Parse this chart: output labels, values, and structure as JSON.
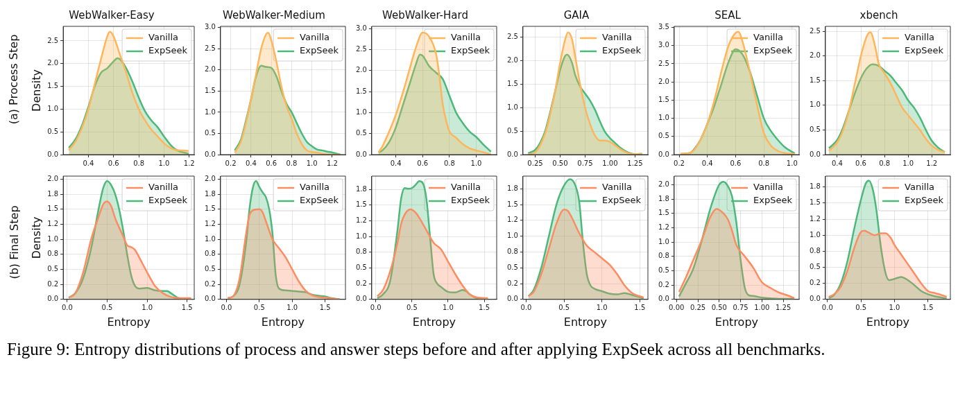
{
  "chart_data": [
    {
      "type": "area",
      "title": "WebWalker-Easy",
      "ylabel": "Density",
      "annotations": [
        "(a) Process Step"
      ],
      "xlim": [
        0.2,
        1.24
      ],
      "xticks": [
        0.4,
        0.6,
        0.8,
        {
          "value": 1.0,
          "label": "1.0"
        },
        1.2
      ],
      "ylim": [
        0,
        2.82
      ],
      "yticks": [
        {
          "value": 0,
          "label": "0.0"
        },
        0.5,
        {
          "value": 1.0,
          "label": "1.0"
        },
        1.5,
        {
          "value": 2.0,
          "label": "2.0"
        },
        2.5
      ],
      "grid": true,
      "legend": "top right",
      "line_style": "solid",
      "series": [
        {
          "name": "Vanilla",
          "color": "#fdb65b",
          "x": [
            0.245,
            0.3,
            0.35,
            0.4,
            0.45,
            0.5,
            0.55,
            0.57,
            0.6,
            0.65,
            0.7,
            0.75,
            0.8,
            0.85,
            0.9,
            0.95,
            1.0,
            1.05,
            1.1,
            1.15,
            1.195
          ],
          "values": [
            0.1,
            0.3,
            0.6,
            1.0,
            1.55,
            2.1,
            2.6,
            2.7,
            2.6,
            2.2,
            1.8,
            1.35,
            1.0,
            0.75,
            0.55,
            0.4,
            0.25,
            0.15,
            0.1,
            0.09,
            0.08
          ]
        },
        {
          "name": "ExpSeek",
          "color": "#4cb87a",
          "x": [
            0.245,
            0.3,
            0.35,
            0.4,
            0.45,
            0.5,
            0.55,
            0.6,
            0.63,
            0.65,
            0.7,
            0.75,
            0.8,
            0.85,
            0.9,
            0.95,
            1.0,
            1.05,
            1.1,
            1.195
          ],
          "values": [
            0.15,
            0.35,
            0.65,
            1.05,
            1.5,
            1.8,
            1.9,
            2.05,
            2.12,
            2.1,
            1.9,
            1.6,
            1.25,
            0.95,
            0.75,
            0.6,
            0.4,
            0.22,
            0.1,
            0.02
          ]
        }
      ]
    },
    {
      "type": "area",
      "title": "WebWalker-Medium",
      "xlim": [
        0.1,
        1.33
      ],
      "xticks": [
        0.2,
        0.4,
        0.6,
        0.8,
        {
          "value": 1.0,
          "label": "1.0"
        },
        1.2
      ],
      "ylim": [
        0,
        3.03
      ],
      "yticks": [
        {
          "value": 0,
          "label": "0.0"
        },
        0.5,
        {
          "value": 1.0,
          "label": "1.0"
        },
        1.5,
        {
          "value": 2.0,
          "label": "2.0"
        },
        2.5,
        {
          "value": 3.0,
          "label": "3.0"
        }
      ],
      "grid": true,
      "legend": "top right",
      "line_style": "solid",
      "series": [
        {
          "name": "Vanilla",
          "color": "#fdb65b",
          "x": [
            0.24,
            0.3,
            0.35,
            0.4,
            0.45,
            0.5,
            0.55,
            0.57,
            0.6,
            0.65,
            0.7,
            0.75,
            0.8,
            0.85,
            0.9,
            0.95,
            1.0,
            1.05,
            1.1,
            1.2,
            1.28
          ],
          "values": [
            0.05,
            0.3,
            0.75,
            1.3,
            1.9,
            2.5,
            2.85,
            2.88,
            2.7,
            2.2,
            1.6,
            1.15,
            0.85,
            0.5,
            0.25,
            0.1,
            0.06,
            0.05,
            0.02,
            0.0,
            0.0
          ]
        },
        {
          "name": "ExpSeek",
          "color": "#4cb87a",
          "x": [
            0.24,
            0.3,
            0.35,
            0.4,
            0.45,
            0.5,
            0.55,
            0.6,
            0.65,
            0.7,
            0.75,
            0.8,
            0.85,
            0.9,
            0.95,
            1.0,
            1.05,
            1.1,
            1.15,
            1.2,
            1.28
          ],
          "values": [
            0.1,
            0.35,
            0.8,
            1.3,
            1.85,
            2.1,
            2.07,
            2.05,
            1.85,
            1.5,
            1.2,
            1.0,
            0.75,
            0.5,
            0.3,
            0.2,
            0.12,
            0.1,
            0.07,
            0.05,
            0.0
          ]
        }
      ]
    },
    {
      "type": "area",
      "title": "WebWalker-Hard",
      "xlim": [
        0.22,
        1.153
      ],
      "xticks": [
        0.4,
        0.6,
        0.8,
        {
          "value": 1.0,
          "label": "1.0"
        }
      ],
      "ylim": [
        0,
        3.05
      ],
      "yticks": [
        {
          "value": 0,
          "label": "0.0"
        },
        0.5,
        {
          "value": 1.0,
          "label": "1.0"
        },
        1.5,
        {
          "value": 2.0,
          "label": "2.0"
        },
        2.5,
        {
          "value": 3.0,
          "label": "3.0"
        }
      ],
      "grid": true,
      "legend": "top right",
      "line_style": "solid",
      "series": [
        {
          "name": "Vanilla",
          "color": "#fdb65b",
          "x": [
            0.27,
            0.3,
            0.35,
            0.4,
            0.45,
            0.5,
            0.55,
            0.6,
            0.65,
            0.7,
            0.72,
            0.75,
            0.78,
            0.8,
            0.85,
            0.9,
            0.95,
            1.0,
            1.05,
            1.11
          ],
          "values": [
            0.05,
            0.2,
            0.55,
            0.95,
            1.45,
            2.0,
            2.55,
            2.9,
            2.8,
            2.4,
            2.0,
            1.2,
            0.75,
            0.55,
            0.4,
            0.25,
            0.15,
            0.1,
            0.06,
            0.0
          ]
        },
        {
          "name": "ExpSeek",
          "color": "#4cb87a",
          "x": [
            0.27,
            0.3,
            0.35,
            0.4,
            0.45,
            0.5,
            0.55,
            0.58,
            0.6,
            0.65,
            0.7,
            0.75,
            0.8,
            0.85,
            0.9,
            0.95,
            1.0,
            1.05,
            1.11
          ],
          "values": [
            0.05,
            0.1,
            0.3,
            0.65,
            1.15,
            1.65,
            2.15,
            2.38,
            2.35,
            2.1,
            1.95,
            1.8,
            1.4,
            1.0,
            0.75,
            0.55,
            0.42,
            0.25,
            0.07
          ]
        }
      ]
    },
    {
      "type": "area",
      "title": "GAIA",
      "xlim": [
        0.128,
        1.379
      ],
      "xticks": [
        0.25,
        {
          "value": 0.5,
          "label": "0.50"
        },
        0.75,
        {
          "value": 1.0,
          "label": "1.00"
        },
        1.25
      ],
      "ylim": [
        0,
        2.73
      ],
      "yticks": [
        {
          "value": 0,
          "label": "0.0"
        },
        0.5,
        {
          "value": 1.0,
          "label": "1.0"
        },
        1.5,
        {
          "value": 2.0,
          "label": "2.0"
        },
        2.5
      ],
      "grid": true,
      "legend": "top right",
      "line_style": "solid",
      "series": [
        {
          "name": "Vanilla",
          "color": "#fdb65b",
          "x": [
            0.18,
            0.25,
            0.3,
            0.35,
            0.4,
            0.45,
            0.5,
            0.55,
            0.58,
            0.62,
            0.65,
            0.7,
            0.75,
            0.8,
            0.85,
            0.9,
            0.95,
            1.0,
            1.05,
            1.1,
            1.15,
            1.2,
            1.25,
            1.32
          ],
          "values": [
            0.0,
            0.05,
            0.2,
            0.45,
            0.85,
            1.35,
            1.95,
            2.45,
            2.6,
            2.45,
            2.1,
            1.5,
            1.0,
            0.65,
            0.4,
            0.3,
            0.3,
            0.27,
            0.2,
            0.12,
            0.06,
            0.02,
            0.01,
            0.02
          ]
        },
        {
          "name": "ExpSeek",
          "color": "#4cb87a",
          "x": [
            0.18,
            0.25,
            0.3,
            0.35,
            0.4,
            0.45,
            0.5,
            0.55,
            0.57,
            0.62,
            0.65,
            0.7,
            0.75,
            0.8,
            0.85,
            0.9,
            0.95,
            1.0,
            1.05,
            1.1,
            1.15,
            1.2,
            1.25,
            1.32
          ],
          "values": [
            0.03,
            0.1,
            0.25,
            0.5,
            0.9,
            1.35,
            1.8,
            2.1,
            2.13,
            1.95,
            1.7,
            1.45,
            1.3,
            1.15,
            0.95,
            0.7,
            0.48,
            0.35,
            0.25,
            0.15,
            0.08,
            0.03,
            0.01,
            0.02
          ]
        }
      ]
    },
    {
      "type": "area",
      "title": "SEAL",
      "xlim": [
        0.165,
        1.05
      ],
      "xticks": [
        0.2,
        0.4,
        0.6,
        0.8,
        {
          "value": 1.0,
          "label": "1.0"
        }
      ],
      "ylim": [
        0,
        3.53
      ],
      "yticks": [
        {
          "value": 0,
          "label": "0.0"
        },
        0.5,
        {
          "value": 1.0,
          "label": "1.0"
        },
        1.5,
        {
          "value": 2.0,
          "label": "2.0"
        },
        2.5,
        {
          "value": 3.0,
          "label": "3.0"
        },
        3.5
      ],
      "grid": true,
      "legend": "top right",
      "line_style": "solid",
      "series": [
        {
          "name": "Vanilla",
          "color": "#fdb65b",
          "x": [
            0.21,
            0.25,
            0.3,
            0.35,
            0.4,
            0.45,
            0.5,
            0.55,
            0.6,
            0.62,
            0.65,
            0.7,
            0.75,
            0.8,
            0.85,
            0.9,
            0.95,
            1.02
          ],
          "values": [
            0.02,
            0.03,
            0.1,
            0.4,
            0.85,
            1.5,
            2.3,
            3.0,
            3.35,
            3.38,
            3.1,
            2.3,
            1.4,
            0.6,
            0.25,
            0.1,
            0.04,
            0.02
          ]
        },
        {
          "name": "ExpSeek",
          "color": "#4cb87a",
          "x": [
            0.21,
            0.25,
            0.28,
            0.3,
            0.35,
            0.4,
            0.45,
            0.5,
            0.55,
            0.6,
            0.65,
            0.7,
            0.75,
            0.8,
            0.85,
            0.9,
            0.95,
            1.02
          ],
          "values": [
            0.02,
            0.03,
            0.05,
            0.12,
            0.4,
            0.85,
            1.35,
            1.95,
            2.55,
            2.9,
            2.75,
            2.3,
            1.65,
            1.0,
            0.65,
            0.4,
            0.2,
            0.03
          ]
        }
      ]
    },
    {
      "type": "area",
      "title": "xbench",
      "xlim": [
        0.3,
        1.357
      ],
      "xticks": [
        0.4,
        0.6,
        0.8,
        {
          "value": 1.0,
          "label": "1.0"
        },
        1.2
      ],
      "ylim": [
        0,
        2.6
      ],
      "yticks": [
        {
          "value": 0,
          "label": "0.0"
        },
        0.5,
        {
          "value": 1.0,
          "label": "1.0"
        },
        1.5,
        {
          "value": 2.0,
          "label": "2.0"
        },
        2.5
      ],
      "grid": true,
      "legend": "top right",
      "line_style": "solid",
      "series": [
        {
          "name": "Vanilla",
          "color": "#fdb65b",
          "x": [
            0.33,
            0.4,
            0.45,
            0.5,
            0.55,
            0.6,
            0.65,
            0.68,
            0.72,
            0.75,
            0.8,
            0.85,
            0.9,
            0.95,
            1.0,
            1.05,
            1.1,
            1.15,
            1.2,
            1.25,
            1.31
          ],
          "values": [
            0.08,
            0.25,
            0.5,
            0.9,
            1.45,
            2.0,
            2.4,
            2.48,
            2.2,
            1.85,
            1.65,
            1.45,
            1.2,
            0.95,
            0.8,
            0.65,
            0.5,
            0.32,
            0.18,
            0.1,
            0.05
          ]
        },
        {
          "name": "ExpSeek",
          "color": "#4cb87a",
          "x": [
            0.33,
            0.4,
            0.45,
            0.5,
            0.55,
            0.6,
            0.65,
            0.7,
            0.75,
            0.8,
            0.85,
            0.9,
            0.95,
            1.0,
            1.05,
            1.1,
            1.15,
            1.2,
            1.25,
            1.31
          ],
          "values": [
            0.13,
            0.3,
            0.55,
            0.9,
            1.25,
            1.55,
            1.75,
            1.83,
            1.8,
            1.7,
            1.6,
            1.45,
            1.3,
            1.1,
            0.95,
            0.75,
            0.5,
            0.28,
            0.15,
            0.05
          ]
        }
      ]
    },
    {
      "type": "area",
      "xlabel": "Entropy",
      "ylabel": "Density",
      "annotations": [
        "(b) Final Step",
        "Figure 9: Entropy distributions of process and answer steps before and after applying ExpSeek across all benchmarks."
      ],
      "xlim": [
        -0.05,
        1.589
      ],
      "xticks": [
        {
          "value": 0,
          "label": "0.0"
        },
        0.5,
        {
          "value": 1.0,
          "label": "1.0"
        },
        1.5
      ],
      "ylim": [
        0,
        2.05
      ],
      "yticks": [
        {
          "value": 0,
          "label": "0.0"
        },
        {
          "value": 0.25,
          "label": "0.2"
        },
        0.5,
        {
          "value": 0.75,
          "label": "0.8"
        },
        {
          "value": 1.0,
          "label": "1.0"
        },
        {
          "value": 1.25,
          "label": "1.2"
        },
        1.5,
        {
          "value": 1.75,
          "label": "1.8"
        },
        {
          "value": 2.0,
          "label": "2.0"
        }
      ],
      "grid": true,
      "legend": "top right",
      "line_style": "solid",
      "series": [
        {
          "name": "Vanilla",
          "color": "#fc8d62",
          "x": [
            0.02,
            0.1,
            0.2,
            0.3,
            0.4,
            0.45,
            0.5,
            0.55,
            0.6,
            0.7,
            0.75,
            0.8,
            0.85,
            0.9,
            1.0,
            1.1,
            1.2,
            1.3,
            1.4,
            1.55
          ],
          "values": [
            0.03,
            0.1,
            0.45,
            1.0,
            1.4,
            1.58,
            1.63,
            1.55,
            1.35,
            1.05,
            0.9,
            0.87,
            0.82,
            0.7,
            0.45,
            0.22,
            0.1,
            0.04,
            0.02,
            0.02
          ]
        },
        {
          "name": "ExpSeek",
          "color": "#4cb87a",
          "x": [
            0.02,
            0.1,
            0.2,
            0.3,
            0.4,
            0.45,
            0.5,
            0.55,
            0.6,
            0.65,
            0.7,
            0.75,
            0.8,
            0.85,
            0.9,
            1.0,
            1.1,
            1.2,
            1.25,
            1.3,
            1.4,
            1.55
          ],
          "values": [
            0.03,
            0.1,
            0.35,
            0.85,
            1.55,
            1.85,
            1.97,
            1.9,
            1.75,
            1.5,
            1.15,
            0.75,
            0.4,
            0.22,
            0.18,
            0.19,
            0.15,
            0.14,
            0.14,
            0.1,
            0.02,
            0.01
          ]
        }
      ]
    },
    {
      "type": "area",
      "xlabel": "Entropy",
      "xlim": [
        -0.09,
        1.81
      ],
      "xticks": [
        {
          "value": 0,
          "label": "0.0"
        },
        0.5,
        {
          "value": 1.0,
          "label": "1.0"
        },
        1.5
      ],
      "ylim": [
        0,
        2.05
      ],
      "yticks": [
        {
          "value": 0,
          "label": "0.0"
        },
        {
          "value": 0.25,
          "label": "0.2"
        },
        0.5,
        {
          "value": 0.75,
          "label": "0.8"
        },
        {
          "value": 1.0,
          "label": "1.0"
        },
        {
          "value": 1.25,
          "label": "1.2"
        },
        1.5,
        {
          "value": 1.75,
          "label": "1.8"
        },
        {
          "value": 2.0,
          "label": "2.0"
        }
      ],
      "grid": true,
      "legend": "top right",
      "line_style": "solid",
      "series": [
        {
          "name": "Vanilla",
          "color": "#fc8d62",
          "x": [
            0.02,
            0.1,
            0.2,
            0.3,
            0.35,
            0.4,
            0.5,
            0.55,
            0.6,
            0.7,
            0.8,
            0.9,
            1.0,
            1.1,
            1.2,
            1.3,
            1.4,
            1.5,
            1.72
          ],
          "values": [
            0.02,
            0.05,
            0.35,
            1.1,
            1.4,
            1.48,
            1.5,
            1.45,
            1.3,
            1.0,
            0.85,
            0.7,
            0.5,
            0.3,
            0.15,
            0.07,
            0.04,
            0.03,
            0.0
          ]
        },
        {
          "name": "ExpSeek",
          "color": "#4cb87a",
          "x": [
            0.02,
            0.1,
            0.2,
            0.3,
            0.35,
            0.4,
            0.45,
            0.5,
            0.55,
            0.6,
            0.65,
            0.7,
            0.75,
            0.8,
            0.9,
            1.0,
            1.1,
            1.2,
            1.3,
            1.4,
            1.5,
            1.6,
            1.72
          ],
          "values": [
            0.02,
            0.05,
            0.25,
            0.95,
            1.5,
            1.85,
            1.97,
            1.87,
            1.78,
            1.7,
            1.5,
            1.1,
            0.4,
            0.18,
            0.15,
            0.14,
            0.13,
            0.12,
            0.08,
            0.06,
            0.05,
            0.02,
            0.0
          ]
        }
      ]
    },
    {
      "type": "area",
      "xlabel": "Entropy",
      "xlim": [
        -0.056,
        1.672
      ],
      "xticks": [
        {
          "value": 0,
          "label": "0.0"
        },
        0.5,
        {
          "value": 1.0,
          "label": "1.0"
        },
        1.5
      ],
      "ylim": [
        0,
        1.96
      ],
      "yticks": [
        {
          "value": 0,
          "label": "0.0"
        },
        {
          "value": 0.25,
          "label": "0.2"
        },
        0.5,
        {
          "value": 0.75,
          "label": "0.8"
        },
        {
          "value": 1.0,
          "label": "1.0"
        },
        {
          "value": 1.25,
          "label": "1.2"
        },
        1.5,
        {
          "value": 1.75,
          "label": "1.8"
        }
      ],
      "grid": true,
      "legend": "top right",
      "line_style": "solid",
      "series": [
        {
          "name": "Vanilla",
          "color": "#fc8d62",
          "x": [
            0.02,
            0.1,
            0.2,
            0.3,
            0.35,
            0.4,
            0.48,
            0.55,
            0.6,
            0.7,
            0.8,
            0.9,
            1.0,
            1.1,
            1.2,
            1.3,
            1.4,
            1.55
          ],
          "values": [
            0.05,
            0.15,
            0.45,
            0.9,
            1.2,
            1.35,
            1.43,
            1.38,
            1.3,
            1.1,
            0.9,
            0.8,
            0.6,
            0.4,
            0.22,
            0.08,
            0.03,
            0.02
          ]
        },
        {
          "name": "ExpSeek",
          "color": "#4cb87a",
          "x": [
            0.02,
            0.1,
            0.2,
            0.3,
            0.35,
            0.4,
            0.45,
            0.5,
            0.55,
            0.6,
            0.65,
            0.7,
            0.75,
            0.8,
            0.85,
            0.9,
            1.0,
            1.1,
            1.2,
            1.25,
            1.3,
            1.4,
            1.55
          ],
          "values": [
            0.02,
            0.08,
            0.3,
            1.1,
            1.6,
            1.77,
            1.76,
            1.77,
            1.82,
            1.88,
            1.85,
            1.6,
            1.0,
            0.4,
            0.25,
            0.2,
            0.12,
            0.11,
            0.15,
            0.13,
            0.08,
            0.02,
            0.01
          ]
        }
      ]
    },
    {
      "type": "area",
      "xlabel": "Entropy",
      "xlim": [
        -0.042,
        1.607
      ],
      "xticks": [
        {
          "value": 0,
          "label": "0.0"
        },
        0.5,
        {
          "value": 1.0,
          "label": "1.0"
        },
        1.5
      ],
      "ylim": [
        0,
        1.95
      ],
      "yticks": [
        {
          "value": 0,
          "label": "0.0"
        },
        {
          "value": 0.25,
          "label": "0.2"
        },
        0.5,
        {
          "value": 0.75,
          "label": "0.8"
        },
        {
          "value": 1.0,
          "label": "1.0"
        },
        {
          "value": 1.25,
          "label": "1.2"
        },
        1.5,
        {
          "value": 1.75,
          "label": "1.8"
        }
      ],
      "grid": true,
      "legend": "top right",
      "line_style": "solid",
      "series": [
        {
          "name": "Vanilla",
          "color": "#fc8d62",
          "x": [
            0.03,
            0.1,
            0.2,
            0.3,
            0.4,
            0.5,
            0.55,
            0.6,
            0.7,
            0.8,
            0.9,
            1.0,
            1.1,
            1.2,
            1.3,
            1.4,
            1.55
          ],
          "values": [
            0.05,
            0.12,
            0.4,
            0.8,
            1.2,
            1.42,
            1.4,
            1.3,
            1.05,
            0.85,
            0.75,
            0.65,
            0.55,
            0.4,
            0.22,
            0.1,
            0.03
          ]
        },
        {
          "name": "ExpSeek",
          "color": "#4cb87a",
          "x": [
            0.03,
            0.1,
            0.2,
            0.3,
            0.4,
            0.5,
            0.58,
            0.65,
            0.7,
            0.75,
            0.8,
            0.85,
            0.9,
            1.0,
            1.1,
            1.2,
            1.3,
            1.4,
            1.55
          ],
          "values": [
            0.05,
            0.15,
            0.5,
            1.0,
            1.5,
            1.8,
            1.9,
            1.8,
            1.55,
            0.9,
            0.4,
            0.22,
            0.17,
            0.13,
            0.09,
            0.08,
            0.1,
            0.07,
            0.02
          ]
        }
      ]
    },
    {
      "type": "area",
      "xlabel": "Entropy",
      "xlim": [
        -0.027,
        1.436
      ],
      "xticks": [
        {
          "value": 0,
          "label": "0.00"
        },
        0.25,
        {
          "value": 0.5,
          "label": "0.50"
        },
        0.75,
        {
          "value": 1.0,
          "label": "1.00"
        },
        1.25
      ],
      "ylim": [
        0,
        2.15
      ],
      "yticks": [
        {
          "value": 0,
          "label": "0.0"
        },
        {
          "value": 0.25,
          "label": "0.2"
        },
        0.5,
        {
          "value": 0.75,
          "label": "0.8"
        },
        {
          "value": 1.0,
          "label": "1.0"
        },
        {
          "value": 1.25,
          "label": "1.2"
        },
        1.5,
        {
          "value": 1.75,
          "label": "1.8"
        },
        {
          "value": 2.0,
          "label": "2.0"
        }
      ],
      "grid": true,
      "legend": "top right",
      "line_style": "solid",
      "series": [
        {
          "name": "Vanilla",
          "color": "#fc8d62",
          "x": [
            0.03,
            0.1,
            0.2,
            0.3,
            0.4,
            0.47,
            0.55,
            0.6,
            0.65,
            0.7,
            0.8,
            0.9,
            1.0,
            1.1,
            1.2,
            1.3,
            1.38
          ],
          "values": [
            0.13,
            0.35,
            0.7,
            1.05,
            1.45,
            1.58,
            1.5,
            1.4,
            1.2,
            0.95,
            0.75,
            0.55,
            0.3,
            0.2,
            0.12,
            0.07,
            0.02
          ]
        },
        {
          "name": "ExpSeek",
          "color": "#4cb87a",
          "x": [
            0.03,
            0.1,
            0.2,
            0.3,
            0.4,
            0.5,
            0.55,
            0.6,
            0.65,
            0.7,
            0.75,
            0.8,
            0.85,
            0.9,
            1.0,
            1.1,
            1.2,
            1.38
          ],
          "values": [
            0.05,
            0.25,
            0.55,
            1.05,
            1.6,
            2.0,
            2.05,
            1.98,
            1.8,
            1.35,
            0.7,
            0.2,
            0.07,
            0.06,
            0.03,
            0.02,
            0.01,
            0.01
          ]
        }
      ]
    },
    {
      "type": "area",
      "xlabel": "Entropy",
      "xlim": [
        -0.03,
        1.835
      ],
      "xticks": [
        {
          "value": 0,
          "label": "0.0"
        },
        0.5,
        {
          "value": 1.0,
          "label": "1.0"
        },
        1.5
      ],
      "ylim": [
        0,
        1.92
      ],
      "yticks": [
        {
          "value": 0,
          "label": "0.0"
        },
        {
          "value": 0.25,
          "label": "0.2"
        },
        0.5,
        {
          "value": 0.75,
          "label": "0.8"
        },
        {
          "value": 1.0,
          "label": "1.0"
        },
        {
          "value": 1.25,
          "label": "1.2"
        },
        1.5,
        {
          "value": 1.75,
          "label": "1.8"
        }
      ],
      "grid": true,
      "legend": "top right",
      "line_style": "solid",
      "series": [
        {
          "name": "Vanilla",
          "color": "#fc8d62",
          "x": [
            0.02,
            0.1,
            0.2,
            0.3,
            0.4,
            0.5,
            0.55,
            0.6,
            0.7,
            0.8,
            0.87,
            0.95,
            1.0,
            1.1,
            1.2,
            1.3,
            1.4,
            1.5,
            1.6,
            1.7,
            1.78
          ],
          "values": [
            0.04,
            0.08,
            0.2,
            0.45,
            0.8,
            1.05,
            1.07,
            1.05,
            1.0,
            1.03,
            1.03,
            0.95,
            0.85,
            0.7,
            0.55,
            0.4,
            0.25,
            0.13,
            0.1,
            0.07,
            0.04
          ]
        },
        {
          "name": "ExpSeek",
          "color": "#4cb87a",
          "x": [
            0.02,
            0.1,
            0.2,
            0.3,
            0.4,
            0.5,
            0.57,
            0.62,
            0.68,
            0.73,
            0.8,
            0.87,
            0.92,
            1.0,
            1.1,
            1.2,
            1.3,
            1.4,
            1.5,
            1.6,
            1.7,
            1.78
          ],
          "values": [
            0.02,
            0.07,
            0.25,
            0.6,
            1.1,
            1.55,
            1.8,
            1.85,
            1.7,
            1.4,
            0.8,
            0.4,
            0.3,
            0.32,
            0.35,
            0.3,
            0.22,
            0.13,
            0.08,
            0.05,
            0.03,
            0.01
          ]
        }
      ]
    }
  ]
}
